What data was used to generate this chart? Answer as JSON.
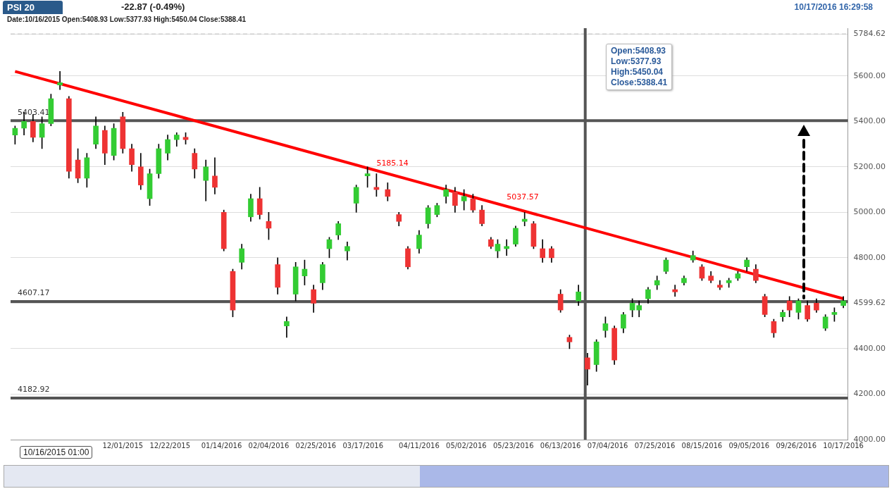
{
  "chart_data": {
    "type": "candlestick",
    "title": "PSI 20",
    "subtitle": "-22.87 (-0.49%)",
    "x": [
      "2015-10-14",
      "2015-10-18",
      "2015-10-22",
      "2015-10-26",
      "2015-10-30",
      "2015-11-03",
      "2015-11-07",
      "2015-11-11",
      "2015-11-15",
      "2015-11-19",
      "2015-11-23",
      "2015-11-27",
      "2015-12-01",
      "2015-12-05",
      "2015-12-09",
      "2015-12-13",
      "2015-12-17",
      "2015-12-21",
      "2015-12-25",
      "2015-12-29",
      "2016-01-02",
      "2016-01-07",
      "2016-01-11",
      "2016-01-15",
      "2016-01-19",
      "2016-01-23",
      "2016-01-27",
      "2016-01-31",
      "2016-02-04",
      "2016-02-08",
      "2016-02-12",
      "2016-02-16",
      "2016-02-20",
      "2016-02-24",
      "2016-02-28",
      "2016-03-02",
      "2016-03-06",
      "2016-03-10",
      "2016-03-14",
      "2016-03-19",
      "2016-03-23",
      "2016-03-28",
      "2016-04-02",
      "2016-04-06",
      "2016-04-11",
      "2016-04-15",
      "2016-04-19",
      "2016-04-23",
      "2016-04-27",
      "2016-05-01",
      "2016-05-05",
      "2016-05-09",
      "2016-05-13",
      "2016-05-16",
      "2016-05-20",
      "2016-05-24",
      "2016-05-28",
      "2016-06-01",
      "2016-06-05",
      "2016-06-09",
      "2016-06-13",
      "2016-06-17",
      "2016-06-21",
      "2016-06-25",
      "2016-06-29",
      "2016-07-03",
      "2016-07-07",
      "2016-07-11",
      "2016-07-15",
      "2016-07-18",
      "2016-07-22",
      "2016-07-26",
      "2016-07-30",
      "2016-08-03",
      "2016-08-07",
      "2016-08-11",
      "2016-08-15",
      "2016-08-19",
      "2016-08-23",
      "2016-08-27",
      "2016-08-31",
      "2016-09-04",
      "2016-09-08",
      "2016-09-12",
      "2016-09-16",
      "2016-09-20",
      "2016-09-23",
      "2016-09-27",
      "2016-10-01",
      "2016-10-05",
      "2016-10-09",
      "2016-10-13",
      "2016-10-17"
    ],
    "ohlc": [
      [
        5340,
        5380,
        5300,
        5370
      ],
      [
        5370,
        5440,
        5340,
        5400
      ],
      [
        5400,
        5430,
        5310,
        5330
      ],
      [
        5330,
        5420,
        5280,
        5390
      ],
      [
        5390,
        5520,
        5380,
        5500
      ],
      [
        5560,
        5620,
        5540,
        5570
      ],
      [
        5500,
        5510,
        5150,
        5180
      ],
      [
        5230,
        5280,
        5130,
        5150
      ],
      [
        5150,
        5260,
        5110,
        5240
      ],
      [
        5300,
        5420,
        5280,
        5380
      ],
      [
        5360,
        5380,
        5210,
        5260
      ],
      [
        5250,
        5390,
        5230,
        5370
      ],
      [
        5420,
        5440,
        5260,
        5280
      ],
      [
        5280,
        5300,
        5180,
        5210
      ],
      [
        5200,
        5260,
        5100,
        5120
      ],
      [
        5060,
        5190,
        5030,
        5170
      ],
      [
        5170,
        5300,
        5150,
        5280
      ],
      [
        5260,
        5340,
        5230,
        5320
      ],
      [
        5320,
        5350,
        5290,
        5340
      ],
      [
        5330,
        5350,
        5300,
        5320
      ],
      [
        5260,
        5280,
        5150,
        5190
      ],
      [
        5140,
        5230,
        5050,
        5200
      ],
      [
        5160,
        5240,
        5080,
        5110
      ],
      [
        5000,
        5010,
        4830,
        4840
      ],
      [
        4740,
        4750,
        4540,
        4570
      ],
      [
        4780,
        4860,
        4750,
        4840
      ],
      [
        4980,
        5080,
        4960,
        5060
      ],
      [
        5060,
        5110,
        4970,
        4990
      ],
      [
        4960,
        5000,
        4880,
        4930
      ],
      [
        4770,
        4800,
        4640,
        4670
      ],
      [
        4500,
        4540,
        4450,
        4520
      ],
      [
        4640,
        4780,
        4610,
        4760
      ],
      [
        4720,
        4790,
        4680,
        4750
      ],
      [
        4660,
        4680,
        4560,
        4600
      ],
      [
        4690,
        4780,
        4660,
        4770
      ],
      [
        4840,
        4890,
        4800,
        4880
      ],
      [
        4900,
        4960,
        4880,
        4950
      ],
      [
        4830,
        4870,
        4790,
        4850
      ],
      [
        5040,
        5120,
        5000,
        5110
      ],
      [
        5160,
        5200,
        5110,
        5170
      ],
      [
        5110,
        5170,
        5070,
        5100
      ],
      [
        5100,
        5130,
        5050,
        5070
      ],
      [
        4990,
        5000,
        4940,
        4960
      ],
      [
        4840,
        4850,
        4750,
        4760
      ],
      [
        4840,
        4920,
        4820,
        4900
      ],
      [
        4950,
        5030,
        4930,
        5020
      ],
      [
        4990,
        5040,
        4980,
        5030
      ],
      [
        5070,
        5120,
        5040,
        5100
      ],
      [
        5090,
        5110,
        5000,
        5030
      ],
      [
        5050,
        5100,
        5010,
        5070
      ],
      [
        5060,
        5080,
        5000,
        5010
      ],
      [
        5010,
        5030,
        4940,
        4950
      ],
      [
        4880,
        4890,
        4840,
        4850
      ],
      [
        4830,
        4880,
        4800,
        4860
      ],
      [
        4840,
        4880,
        4810,
        4850
      ],
      [
        4860,
        4940,
        4850,
        4930
      ],
      [
        4960,
        5000,
        4940,
        4970
      ],
      [
        4950,
        4960,
        4840,
        4850
      ],
      [
        4840,
        4880,
        4780,
        4800
      ],
      [
        4840,
        4850,
        4780,
        4800
      ],
      [
        4640,
        4660,
        4560,
        4570
      ],
      [
        4450,
        4460,
        4400,
        4430
      ],
      [
        4610,
        4680,
        4590,
        4650
      ],
      [
        4360,
        4380,
        4240,
        4310
      ],
      [
        4330,
        4440,
        4300,
        4430
      ],
      [
        4480,
        4540,
        4450,
        4510
      ],
      [
        4490,
        4500,
        4330,
        4350
      ],
      [
        4490,
        4560,
        4470,
        4550
      ],
      [
        4570,
        4620,
        4540,
        4600
      ],
      [
        4570,
        4610,
        4540,
        4590
      ],
      [
        4620,
        4670,
        4600,
        4660
      ],
      [
        4680,
        4720,
        4660,
        4700
      ],
      [
        4740,
        4800,
        4730,
        4790
      ],
      [
        4660,
        4680,
        4630,
        4650
      ],
      [
        4690,
        4720,
        4680,
        4710
      ],
      [
        4790,
        4830,
        4780,
        4810
      ],
      [
        4760,
        4770,
        4700,
        4710
      ],
      [
        4720,
        4740,
        4690,
        4700
      ],
      [
        4680,
        4700,
        4660,
        4670
      ],
      [
        4690,
        4710,
        4670,
        4700
      ],
      [
        4710,
        4740,
        4700,
        4730
      ],
      [
        4760,
        4800,
        4740,
        4790
      ],
      [
        4750,
        4770,
        4690,
        4700
      ],
      [
        4630,
        4640,
        4540,
        4550
      ],
      [
        4520,
        4530,
        4450,
        4470
      ],
      [
        4540,
        4570,
        4520,
        4560
      ],
      [
        4610,
        4630,
        4540,
        4570
      ],
      [
        4560,
        4620,
        4530,
        4610
      ],
      [
        4590,
        4610,
        4520,
        4530
      ],
      [
        4600,
        4620,
        4560,
        4570
      ],
      [
        4490,
        4550,
        4480,
        4540
      ],
      [
        4550,
        4580,
        4520,
        4560
      ],
      [
        4590,
        4630,
        4580,
        4610
      ]
    ],
    "colors": [
      "#33cc33",
      "#33cc33",
      "#ee3333",
      "#33cc33",
      "#33cc33",
      "#33cc33",
      "#ee3333",
      "#ee3333",
      "#33cc33",
      "#33cc33",
      "#ee3333",
      "#33cc33",
      "#ee3333",
      "#ee3333",
      "#ee3333",
      "#33cc33",
      "#33cc33",
      "#33cc33",
      "#33cc33",
      "#ee3333",
      "#ee3333",
      "#33cc33",
      "#ee3333",
      "#ee3333",
      "#ee3333",
      "#33cc33",
      "#33cc33",
      "#ee3333",
      "#ee3333",
      "#ee3333",
      "#33cc33",
      "#33cc33",
      "#33cc33",
      "#ee3333",
      "#33cc33",
      "#33cc33",
      "#33cc33",
      "#33cc33",
      "#33cc33",
      "#33cc33",
      "#ee3333",
      "#ee3333",
      "#ee3333",
      "#ee3333",
      "#33cc33",
      "#33cc33",
      "#33cc33",
      "#33cc33",
      "#ee3333",
      "#33cc33",
      "#ee3333",
      "#ee3333",
      "#ee3333",
      "#33cc33",
      "#33cc33",
      "#33cc33",
      "#33cc33",
      "#ee3333",
      "#ee3333",
      "#ee3333",
      "#ee3333",
      "#ee3333",
      "#33cc33",
      "#ee3333",
      "#33cc33",
      "#33cc33",
      "#ee3333",
      "#33cc33",
      "#33cc33",
      "#33cc33",
      "#33cc33",
      "#33cc33",
      "#33cc33",
      "#ee3333",
      "#33cc33",
      "#33cc33",
      "#ee3333",
      "#ee3333",
      "#ee3333",
      "#33cc33",
      "#33cc33",
      "#33cc33",
      "#ee3333",
      "#ee3333",
      "#ee3333",
      "#33cc33",
      "#ee3333",
      "#33cc33",
      "#ee3333",
      "#ee3333",
      "#33cc33",
      "#33cc33",
      "#33cc33"
    ],
    "series": [
      {
        "type": "line",
        "x": [
          "2015-10-14",
          "2016-10-17"
        ],
        "values": [
          5620,
          4620
        ],
        "color": "#ff0000"
      }
    ],
    "xlim": [
      "2015-10-12",
      "2016-10-19"
    ],
    "xticks": [
      {
        "value": "2015-12-01",
        "label": "12/01/2015"
      },
      {
        "value": "2015-12-22",
        "label": "12/22/2015"
      },
      {
        "value": "2016-01-14",
        "label": "01/14/2016"
      },
      {
        "value": "2016-02-04",
        "label": "02/04/2016"
      },
      {
        "value": "2016-02-25",
        "label": "02/25/2016"
      },
      {
        "value": "2016-03-17",
        "label": "03/17/2016"
      },
      {
        "value": "2016-04-11",
        "label": "04/11/2016"
      },
      {
        "value": "2016-05-02",
        "label": "05/02/2016"
      },
      {
        "value": "2016-05-23",
        "label": "05/23/2016"
      },
      {
        "value": "2016-06-13",
        "label": "06/13/2016"
      },
      {
        "value": "2016-07-04",
        "label": "07/04/2016"
      },
      {
        "value": "2016-07-25",
        "label": "07/25/2016"
      },
      {
        "value": "2016-08-15",
        "label": "08/15/2016"
      },
      {
        "value": "2016-09-05",
        "label": "09/05/2016"
      },
      {
        "value": "2016-09-26",
        "label": "09/26/2016"
      },
      {
        "value": "2016-10-17",
        "label": "10/17/2016"
      }
    ],
    "ylim": [
      4000,
      5810
    ],
    "yticks": [
      {
        "value": 4000,
        "label": "4000.00"
      },
      {
        "value": 4200,
        "label": "4200.00"
      },
      {
        "value": 4400,
        "label": "4400.00"
      },
      {
        "value": 4599.62,
        "label": "4599.62"
      },
      {
        "value": 4800,
        "label": "4800.00"
      },
      {
        "value": 5000,
        "label": "5000.00"
      },
      {
        "value": 5200,
        "label": "5200.00"
      },
      {
        "value": 5400,
        "label": "5400.00"
      },
      {
        "value": 5600,
        "label": "5600.00"
      },
      {
        "value": 5784.62,
        "label": "5784.62"
      }
    ],
    "ref_lines": [
      {
        "axis": "y",
        "value": 5403.41,
        "label": "5403.41",
        "color": "#555555"
      },
      {
        "axis": "y",
        "value": 4607.17,
        "label": "4607.17",
        "color": "#555555"
      },
      {
        "axis": "y",
        "value": 4182.92,
        "label": "4182.92",
        "color": "#555555"
      },
      {
        "axis": "y",
        "value": 5784.62,
        "color": "#bbbbbb",
        "line_style": "dashed"
      },
      {
        "axis": "x",
        "value": "2016-06-24",
        "color": "#555555"
      }
    ],
    "annotations": [
      {
        "text": "5185.14",
        "x": "2016-03-23",
        "y": 5185.14
      },
      {
        "text": "5037.57",
        "x": "2016-05-20",
        "y": 5037.57
      },
      "10/17/2016 16:29:58",
      "Date:10/16/2015 Open:5408.93 Low:5377.93 High:5450.04 Close:5388.41",
      "Open:5408.93",
      "Low:5377.93",
      "High:5450.04",
      "Close:5388.41",
      "10/16/2015 01:00"
    ],
    "grid": "y",
    "legend": false
  }
}
